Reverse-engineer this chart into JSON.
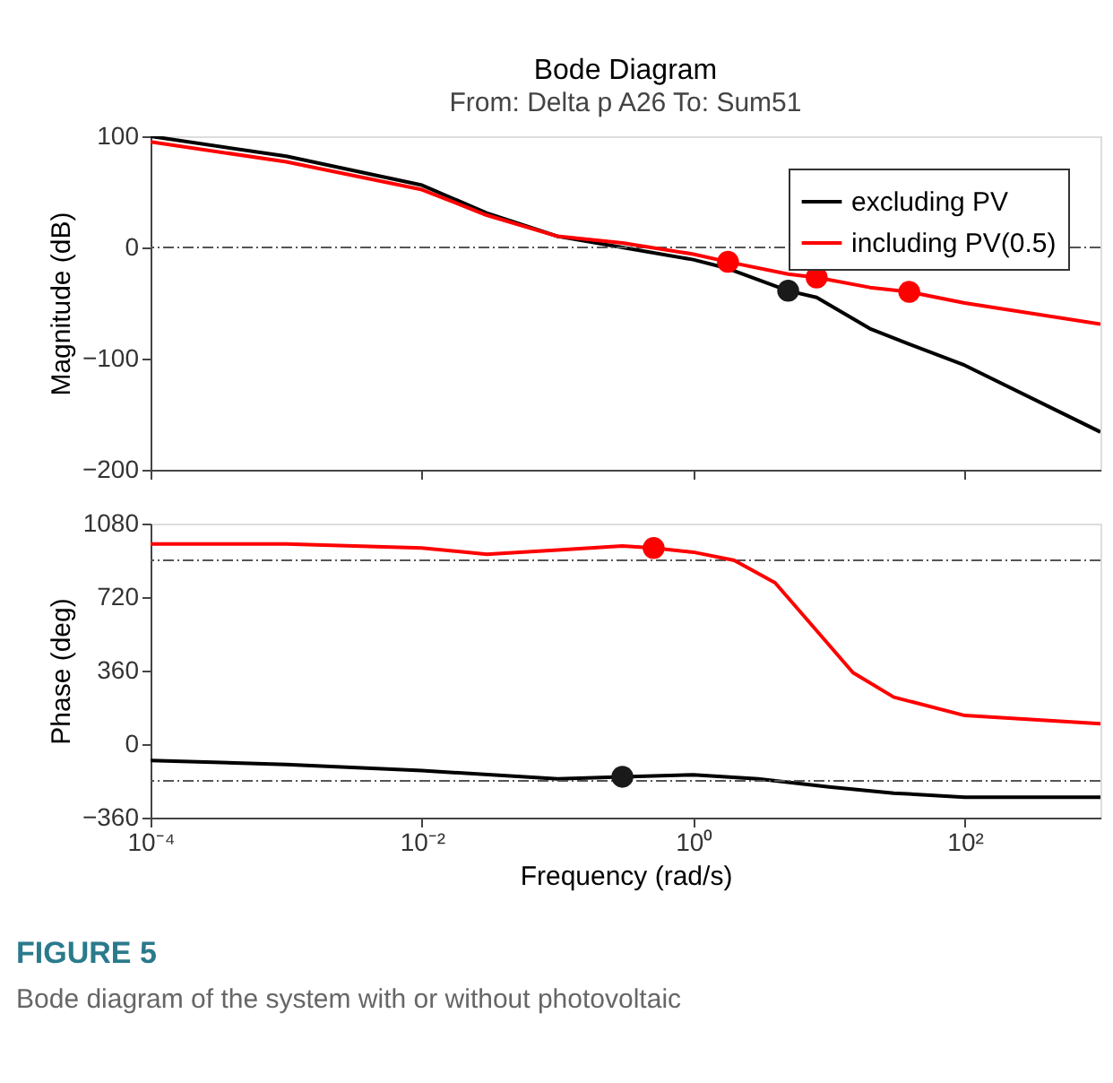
{
  "chart_data": [
    {
      "type": "line",
      "title": "Bode Diagram",
      "subtitle": "From: Delta p A26  To: Sum51",
      "ylabel": "Magnitude (dB)",
      "log": "x",
      "xlim": [
        0.0001,
        1000
      ],
      "xticks": [
        {
          "value": 0.0001,
          "label": null
        },
        {
          "value": 0.01,
          "label": null
        },
        {
          "value": 1,
          "label": null
        },
        {
          "value": 100,
          "label": null
        }
      ],
      "ylim": [
        -200,
        100
      ],
      "yticks": [
        -200,
        -100,
        0,
        100
      ],
      "tick_labels": "y",
      "grid": false,
      "legend": "top right",
      "marker": "none",
      "ref_lines": [
        {
          "axis": "y",
          "value": 0,
          "label": null,
          "color": "#555555",
          "line_style": "dashed"
        }
      ],
      "series": [
        {
          "name": "excluding PV",
          "color": "#000000",
          "x": [
            0.0001,
            0.001,
            0.01,
            0.03,
            0.1,
            0.3,
            1,
            1.8,
            5,
            8.1,
            20,
            39,
            100,
            1000
          ],
          "values": [
            100,
            82,
            56,
            31,
            10,
            0,
            -11,
            -19,
            -39,
            -45,
            -73,
            -87,
            -106,
            -166
          ]
        },
        {
          "name": "including PV(0.5)",
          "color": "#ff0000",
          "x": [
            0.0001,
            0.001,
            0.01,
            0.03,
            0.1,
            0.3,
            1,
            1.8,
            5,
            8.1,
            20,
            39,
            100,
            1000
          ],
          "values": [
            95,
            77,
            52,
            29,
            10,
            4,
            -6,
            -13,
            -24,
            -27,
            -36,
            -40,
            -50,
            -69
          ]
        },
        {
          "color": "#ff0000",
          "type": "scatter",
          "marker": "circle",
          "x": [
            1.8,
            8.1,
            39
          ],
          "values": [
            -13,
            -27,
            -40
          ]
        },
        {
          "color": "#1a1a1a",
          "type": "scatter",
          "marker": "circle",
          "x": [
            5
          ],
          "values": [
            -39
          ]
        }
      ]
    },
    {
      "type": "line",
      "xlabel": "Frequency  (rad/s)",
      "ylabel": "Phase (deg)",
      "log": "x",
      "xlim": [
        0.0001,
        1000
      ],
      "xticks": [
        {
          "value": 0.0001,
          "label": "10⁻⁴"
        },
        {
          "value": 0.01,
          "label": "10⁻²"
        },
        {
          "value": 1,
          "label": "10⁰"
        },
        {
          "value": 100,
          "label": "10²"
        }
      ],
      "ylim": [
        -360,
        1080
      ],
      "yticks": [
        -360,
        0,
        360,
        720,
        1080
      ],
      "grid": false,
      "marker": "none",
      "ref_lines": [
        {
          "axis": "y",
          "value": 900,
          "label": null,
          "color": "#555555",
          "line_style": "dashed"
        },
        {
          "axis": "y",
          "value": -180,
          "label": null,
          "color": "#555555",
          "line_style": "dashed"
        }
      ],
      "annotations": [
        "FIGURE 5",
        "Bode diagram of the system with or without photovoltaic"
      ],
      "series": [
        {
          "color": "#000000",
          "x": [
            0.0001,
            0.001,
            0.01,
            0.1,
            0.3,
            1,
            3,
            10,
            30,
            100,
            1000
          ],
          "values": [
            -80,
            -100,
            -130,
            -170,
            -160,
            -150,
            -170,
            -210,
            -240,
            -260,
            -260
          ]
        },
        {
          "color": "#ff0000",
          "x": [
            0.0001,
            0.001,
            0.01,
            0.03,
            0.1,
            0.3,
            0.51,
            1,
            2,
            4,
            8,
            15,
            30,
            100,
            1000
          ],
          "values": [
            980,
            980,
            960,
            930,
            950,
            970,
            960,
            940,
            900,
            790,
            560,
            350,
            230,
            140,
            100
          ]
        },
        {
          "color": "#ff0000",
          "type": "scatter",
          "marker": "circle",
          "x": [
            0.51
          ],
          "values": [
            960
          ]
        },
        {
          "color": "#1a1a1a",
          "type": "scatter",
          "marker": "circle",
          "x": [
            0.3
          ],
          "values": [
            -160
          ]
        }
      ]
    }
  ]
}
